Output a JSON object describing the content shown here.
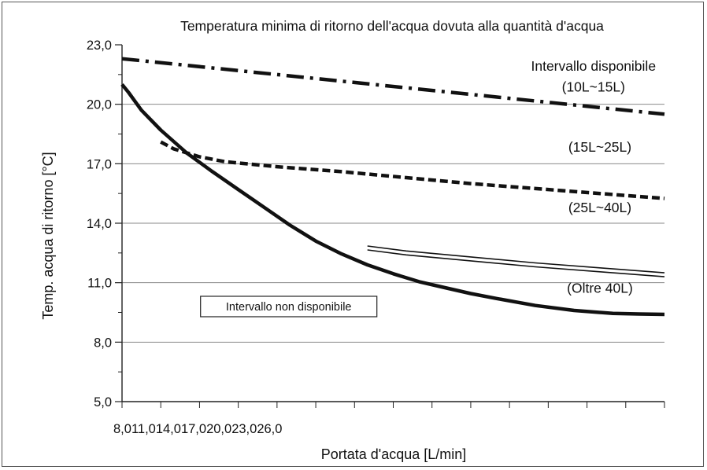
{
  "chart_data": {
    "type": "line",
    "title": "Temperatura minima di ritorno dell'acqua dovuta alla quantità d'acqua",
    "xlabel": "Portata d'acqua [L/min]",
    "ylabel": "Temp. acqua di ritorno [°C]",
    "xlim": [
      8,
      50
    ],
    "ylim": [
      5,
      23
    ],
    "x_tick_labels": [
      "8,0",
      "11,0",
      "14,0",
      "17,0",
      "20,0",
      "23,0",
      "26,0"
    ],
    "x_tick_values": [
      8,
      11,
      14,
      17,
      20,
      23,
      26
    ],
    "x_minor_ticks": [
      29,
      32,
      35,
      38,
      41,
      44,
      47,
      50
    ],
    "y_ticks": [
      {
        "value": 5,
        "label": "5,0"
      },
      {
        "value": 8,
        "label": "8,0"
      },
      {
        "value": 11,
        "label": "11,0"
      },
      {
        "value": 14,
        "label": "14,0"
      },
      {
        "value": 17,
        "label": "17,0"
      },
      {
        "value": 20,
        "label": "20,0"
      },
      {
        "value": 23,
        "label": "23,0"
      }
    ],
    "gridlines_y": [
      8,
      11,
      14,
      17,
      20
    ],
    "series": [
      {
        "style": "dashdot",
        "x": [
          8,
          50
        ],
        "y": [
          22.3,
          19.5
        ]
      },
      {
        "style": "dashed",
        "x": [
          11,
          12,
          14,
          16,
          20,
          25,
          30,
          35,
          40,
          45,
          50
        ],
        "y": [
          18.1,
          17.75,
          17.35,
          17.1,
          16.85,
          16.6,
          16.3,
          16.0,
          15.75,
          15.5,
          15.25
        ]
      },
      {
        "style": "thin-double",
        "x": [
          27,
          30,
          35,
          40,
          45,
          50
        ],
        "y": [
          12.75,
          12.5,
          12.2,
          11.9,
          11.65,
          11.4
        ]
      },
      {
        "style": "thick",
        "x": [
          8,
          8.5,
          9.5,
          11,
          13,
          15,
          17,
          19,
          21,
          23,
          25,
          27,
          29,
          31,
          33,
          35,
          37,
          40,
          43,
          46,
          48,
          50
        ],
        "y": [
          21.0,
          20.6,
          19.7,
          18.7,
          17.55,
          16.6,
          15.7,
          14.8,
          13.9,
          13.1,
          12.45,
          11.9,
          11.45,
          11.05,
          10.75,
          10.45,
          10.2,
          9.85,
          9.6,
          9.45,
          9.42,
          9.4
        ]
      }
    ],
    "annotations": [
      {
        "text": "Intervallo disponibile",
        "x": 44.5,
        "y": 21.7
      },
      {
        "text": "(10L~15L)",
        "x": 44.5,
        "y": 20.65
      },
      {
        "text": "(15L~25L)",
        "x": 45,
        "y": 17.6
      },
      {
        "text": "(25L~40L)",
        "x": 45,
        "y": 14.55
      },
      {
        "text": "(Oltre 40L)",
        "x": 45,
        "y": 10.5
      }
    ],
    "boxed_note": {
      "text": "Intervallo non disponibile",
      "x": 14.2,
      "y": 9.6
    }
  }
}
